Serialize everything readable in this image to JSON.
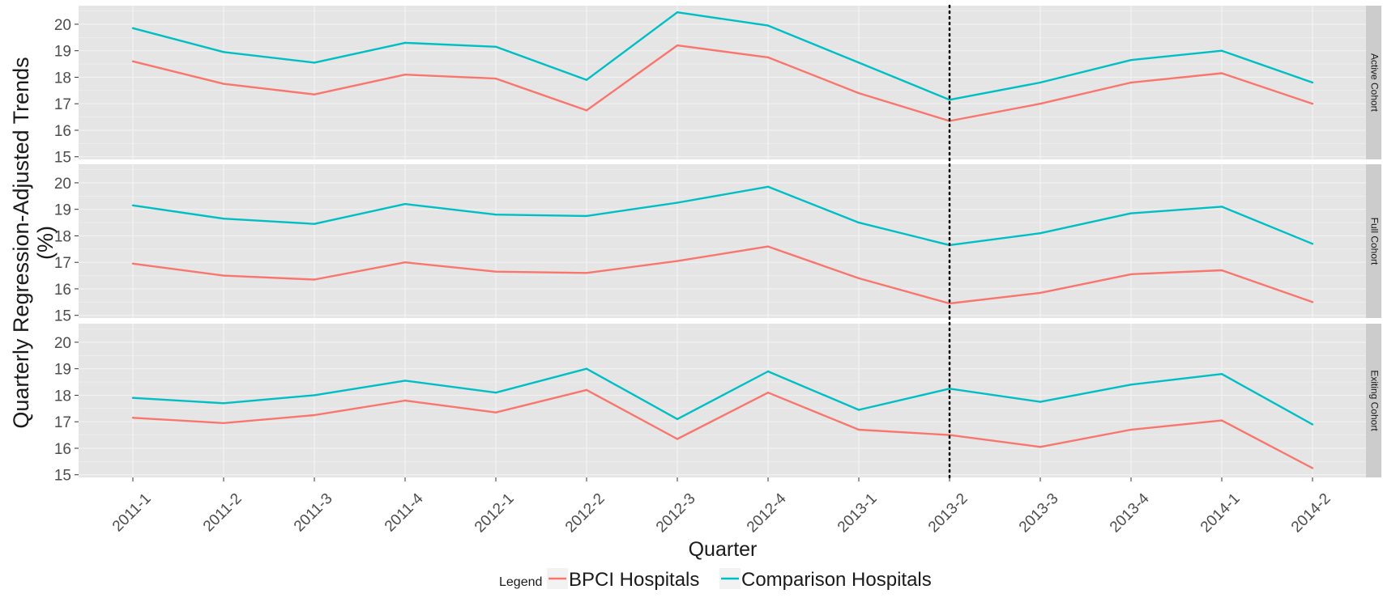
{
  "chart_data": {
    "type": "line",
    "ylabel": "Quarterly Regression-Adjusted Trends (%)",
    "xlabel": "Quarter",
    "categories": [
      "2011-1",
      "2011-2",
      "2011-3",
      "2011-4",
      "2012-1",
      "2012-2",
      "2012-3",
      "2012-4",
      "2013-1",
      "2013-2",
      "2013-3",
      "2013-4",
      "2014-1",
      "2014-2"
    ],
    "ylim": [
      14.9,
      20.7
    ],
    "yticks": [
      15,
      16,
      17,
      18,
      19,
      20
    ],
    "vertical_reference_line": "2013-2",
    "grid": true,
    "legend": {
      "title": "Legend",
      "placement": "bottom",
      "entries": [
        {
          "name": "BPCI Hospitals",
          "color": "#F8766D"
        },
        {
          "name": "Comparison Hospitals",
          "color": "#00BFC4"
        }
      ]
    },
    "panels": [
      {
        "label": "Active Cohort",
        "series": [
          {
            "name": "BPCI Hospitals",
            "values": [
              18.6,
              17.75,
              17.35,
              18.1,
              17.95,
              16.75,
              19.2,
              18.75,
              17.4,
              16.35,
              17.0,
              17.8,
              18.15,
              17.0
            ]
          },
          {
            "name": "Comparison Hospitals",
            "values": [
              19.85,
              18.95,
              18.55,
              19.3,
              19.15,
              17.9,
              20.45,
              19.95,
              18.55,
              17.15,
              17.8,
              18.65,
              19.0,
              17.8
            ]
          }
        ]
      },
      {
        "label": "Full Cohort",
        "series": [
          {
            "name": "BPCI Hospitals",
            "values": [
              16.95,
              16.5,
              16.35,
              17.0,
              16.65,
              16.6,
              17.05,
              17.6,
              16.4,
              15.45,
              15.85,
              16.55,
              16.7,
              15.5
            ]
          },
          {
            "name": "Comparison Hospitals",
            "values": [
              19.15,
              18.65,
              18.45,
              19.2,
              18.8,
              18.75,
              19.25,
              19.85,
              18.5,
              17.65,
              18.1,
              18.85,
              19.1,
              17.7
            ]
          }
        ]
      },
      {
        "label": "Exiting Cohort",
        "series": [
          {
            "name": "BPCI Hospitals",
            "values": [
              17.15,
              16.95,
              17.25,
              17.8,
              17.35,
              18.2,
              16.35,
              18.1,
              16.7,
              16.5,
              16.05,
              16.7,
              17.05,
              15.25
            ]
          },
          {
            "name": "Comparison Hospitals",
            "values": [
              17.9,
              17.7,
              18.0,
              18.55,
              18.1,
              19.0,
              17.1,
              18.9,
              17.45,
              18.25,
              17.75,
              18.4,
              18.8,
              16.9
            ]
          }
        ]
      }
    ]
  },
  "colors": {
    "panel_background": "#E5E5E5",
    "strip_background": "#CCCCCC",
    "gridline": "#F2F2F2",
    "axis_text": "#4D4D4D"
  }
}
